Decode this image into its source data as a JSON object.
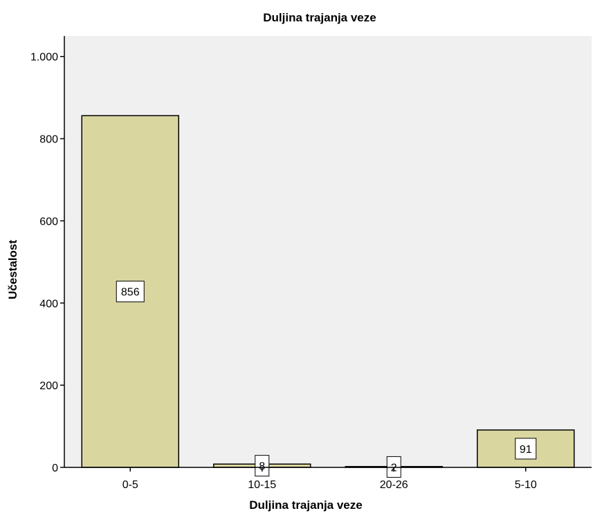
{
  "chart_data": {
    "type": "bar",
    "title": "Duljina trajanja veze",
    "xlabel": "Duljina trajanja veze",
    "ylabel": "Učestalost",
    "categories": [
      "0-5",
      "10-15",
      "20-26",
      "5-10"
    ],
    "values": [
      856,
      8,
      2,
      91
    ],
    "data_labels": [
      "856",
      "8",
      "2",
      "91"
    ],
    "ylim": [
      0,
      1050
    ],
    "yticks": [
      0,
      200,
      400,
      600,
      800,
      1000
    ],
    "ytick_labels": [
      "0",
      "200",
      "400",
      "600",
      "800",
      "1.000"
    ],
    "grid": false,
    "legend": "none",
    "colors": {
      "bar_fill": "#d9d6a0",
      "bar_stroke": "#000000",
      "plot_background": "#f0f0f0",
      "axis": "#000000",
      "label_box": "#ffffff"
    }
  }
}
